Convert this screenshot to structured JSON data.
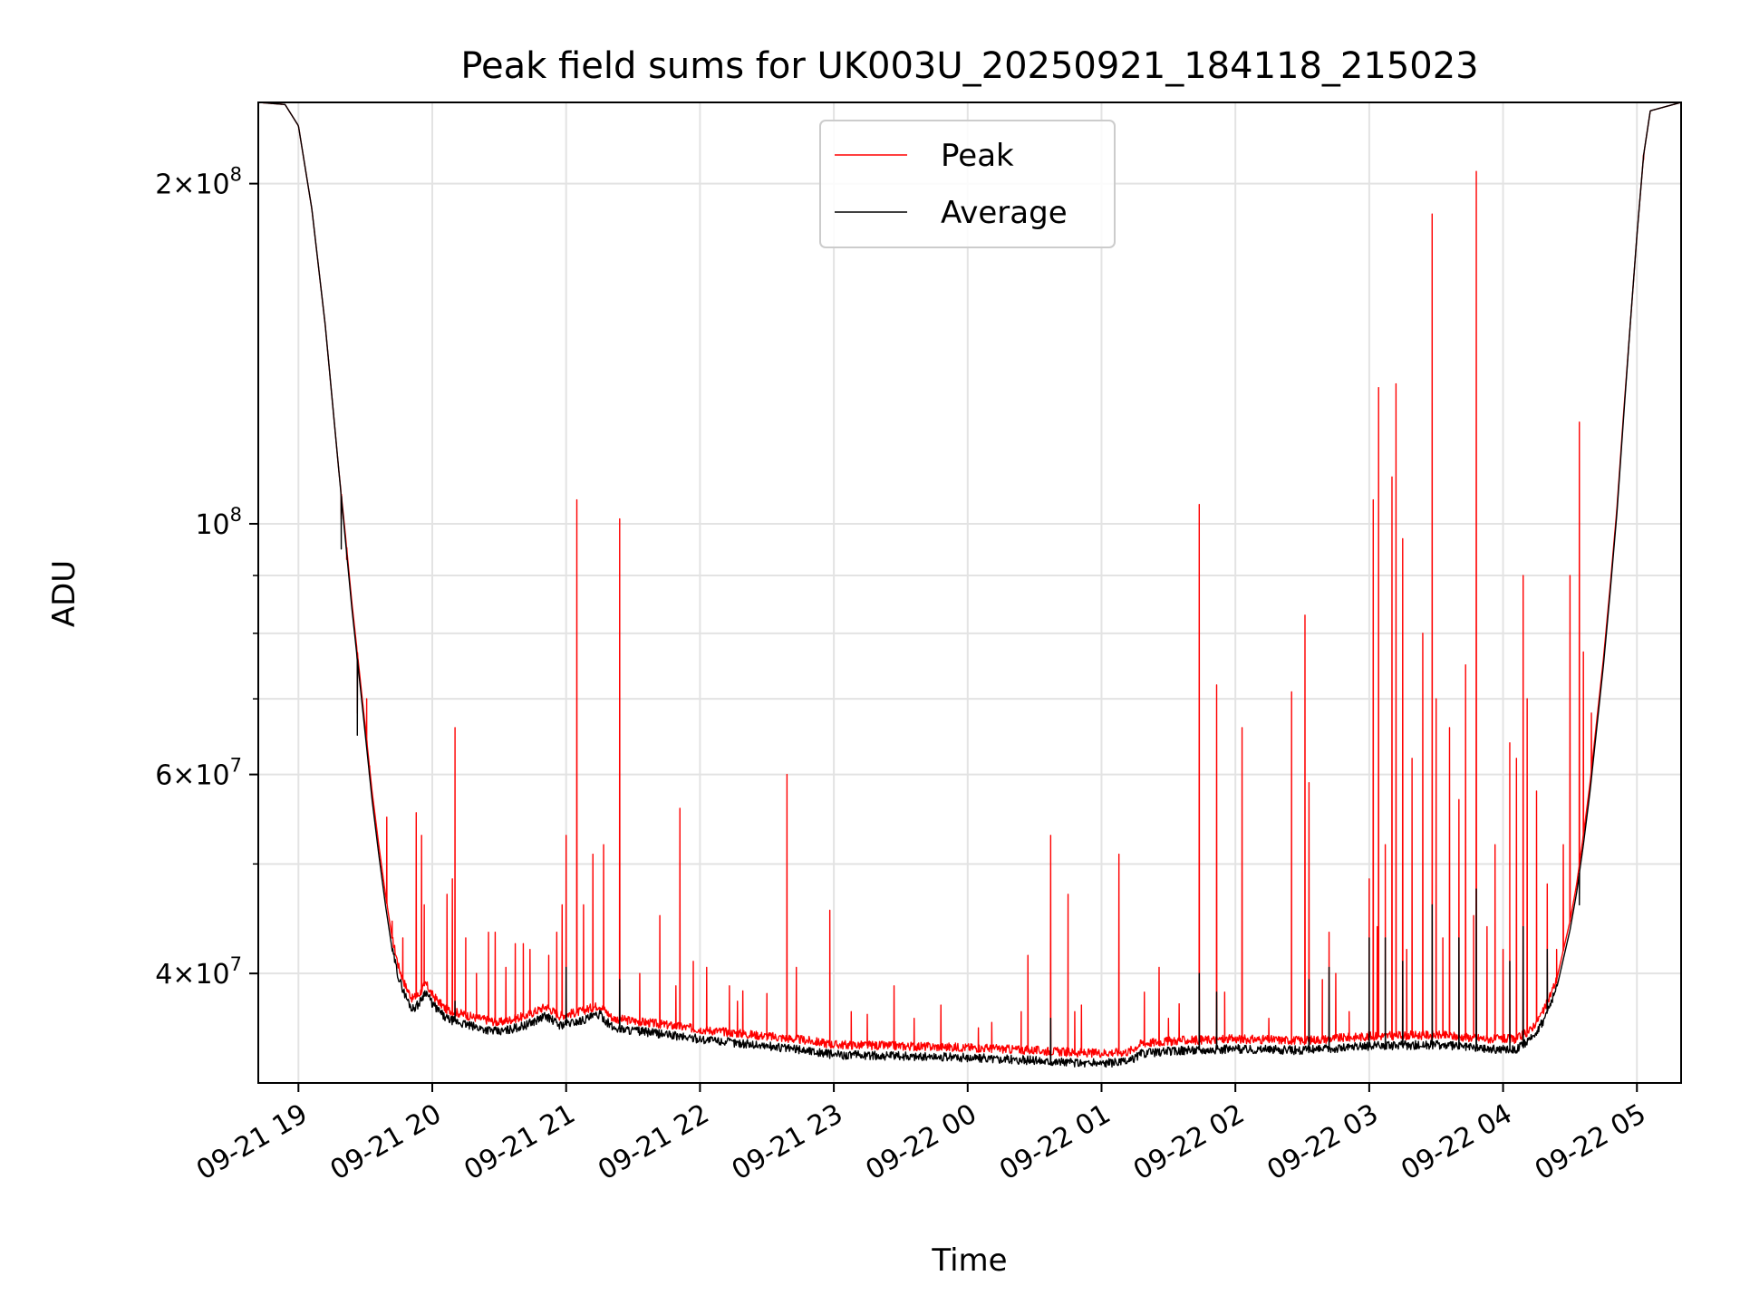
{
  "chart_data": {
    "type": "line",
    "title": "Peak field sums for UK003U_20250921_184118_215023",
    "xlabel": "Time",
    "ylabel": "ADU",
    "yscale": "log",
    "xlim": [
      -0.3,
      10.33
    ],
    "ylim": [
      32000000,
      236000000
    ],
    "grid": true,
    "legend_position": "upper-center",
    "x_ticks": [
      {
        "value": 0,
        "label": "09-21 19"
      },
      {
        "value": 1,
        "label": "09-21 20"
      },
      {
        "value": 2,
        "label": "09-21 21"
      },
      {
        "value": 3,
        "label": "09-21 22"
      },
      {
        "value": 4,
        "label": "09-21 23"
      },
      {
        "value": 5,
        "label": "09-22 00"
      },
      {
        "value": 6,
        "label": "09-22 01"
      },
      {
        "value": 7,
        "label": "09-22 02"
      },
      {
        "value": 8,
        "label": "09-22 03"
      },
      {
        "value": 9,
        "label": "09-22 04"
      },
      {
        "value": 10,
        "label": "09-22 05"
      }
    ],
    "y_ticks": [
      {
        "value": 40000000,
        "mantissa": "4",
        "exponent": "7",
        "label": "4×10^7"
      },
      {
        "value": 60000000,
        "mantissa": "6",
        "exponent": "7",
        "label": "6×10^7"
      },
      {
        "value": 100000000,
        "mantissa": "",
        "exponent": "8",
        "label": "10^8"
      },
      {
        "value": 200000000,
        "mantissa": "2",
        "exponent": "8",
        "label": "2×10^8"
      }
    ],
    "y_minor_ticks": [
      50000000,
      70000000,
      80000000,
      90000000
    ],
    "x_unit_note": "hours since 2025-09-21 19:00",
    "series": [
      {
        "name": "Peak",
        "color": "#ff0000",
        "baseline": [
          [
            -0.3,
            236000000
          ],
          [
            -0.1,
            235000000
          ],
          [
            0.0,
            225000000
          ],
          [
            0.1,
            190000000
          ],
          [
            0.2,
            150000000
          ],
          [
            0.3,
            112000000
          ],
          [
            0.35,
            98000000
          ],
          [
            0.4,
            85000000
          ],
          [
            0.45,
            75000000
          ],
          [
            0.5,
            66000000
          ],
          [
            0.55,
            58000000
          ],
          [
            0.6,
            52000000
          ],
          [
            0.65,
            47000000
          ],
          [
            0.7,
            43000000
          ],
          [
            0.75,
            40500000
          ],
          [
            0.8,
            39000000
          ],
          [
            0.85,
            38000000
          ],
          [
            0.9,
            38300000
          ],
          [
            0.95,
            39200000
          ],
          [
            1.0,
            38300000
          ],
          [
            1.1,
            37200000
          ],
          [
            1.3,
            36600000
          ],
          [
            1.5,
            36200000
          ],
          [
            1.7,
            36700000
          ],
          [
            1.85,
            37400000
          ],
          [
            1.95,
            36700000
          ],
          [
            2.1,
            37000000
          ],
          [
            2.25,
            37500000
          ],
          [
            2.35,
            36500000
          ],
          [
            2.6,
            36200000
          ],
          [
            3.0,
            35700000
          ],
          [
            3.5,
            35200000
          ],
          [
            3.8,
            34900000
          ],
          [
            4.0,
            34600000
          ],
          [
            4.5,
            34500000
          ],
          [
            5.0,
            34400000
          ],
          [
            5.5,
            34200000
          ],
          [
            5.9,
            34000000
          ],
          [
            6.2,
            34100000
          ],
          [
            6.3,
            34700000
          ],
          [
            6.6,
            34900000
          ],
          [
            7.0,
            35000000
          ],
          [
            7.5,
            34900000
          ],
          [
            8.0,
            35200000
          ],
          [
            8.5,
            35300000
          ],
          [
            8.9,
            35000000
          ],
          [
            9.1,
            35000000
          ],
          [
            9.2,
            35600000
          ],
          [
            9.3,
            37000000
          ],
          [
            9.4,
            39500000
          ],
          [
            9.5,
            44500000
          ],
          [
            9.55,
            48000000
          ],
          [
            9.6,
            53000000
          ],
          [
            9.65,
            59000000
          ],
          [
            9.7,
            67000000
          ],
          [
            9.75,
            76000000
          ],
          [
            9.8,
            88000000
          ],
          [
            9.85,
            103000000
          ],
          [
            9.9,
            125000000
          ],
          [
            9.95,
            150000000
          ],
          [
            10.0,
            180000000
          ],
          [
            10.05,
            212000000
          ],
          [
            10.1,
            232000000
          ],
          [
            10.33,
            236000000
          ]
        ],
        "spikes": [
          [
            0.32,
            101000000
          ],
          [
            0.36,
            93000000
          ],
          [
            0.44,
            68000000
          ],
          [
            0.51,
            70000000
          ],
          [
            0.53,
            60000000
          ],
          [
            0.66,
            55000000
          ],
          [
            0.88,
            55500000
          ],
          [
            0.92,
            53000000
          ],
          [
            0.94,
            46000000
          ],
          [
            1.11,
            47000000
          ],
          [
            1.15,
            48500000
          ],
          [
            1.17,
            66000000
          ],
          [
            1.25,
            43000000
          ],
          [
            1.42,
            43500000
          ],
          [
            1.47,
            43500000
          ],
          [
            1.62,
            42500000
          ],
          [
            1.68,
            42500000
          ],
          [
            1.73,
            42000000
          ],
          [
            1.87,
            41500000
          ],
          [
            1.93,
            43500000
          ],
          [
            1.97,
            46000000
          ],
          [
            2.0,
            53000000
          ],
          [
            2.08,
            105000000
          ],
          [
            2.13,
            46000000
          ],
          [
            2.2,
            51000000
          ],
          [
            2.28,
            52000000
          ],
          [
            2.4,
            101000000
          ],
          [
            2.55,
            40000000
          ],
          [
            2.7,
            45000000
          ],
          [
            2.85,
            56000000
          ],
          [
            2.95,
            41000000
          ],
          [
            3.05,
            40500000
          ],
          [
            3.22,
            39000000
          ],
          [
            3.32,
            38600000
          ],
          [
            3.5,
            38400000
          ],
          [
            3.65,
            60000000
          ],
          [
            3.72,
            40500000
          ],
          [
            3.97,
            45500000
          ],
          [
            4.13,
            37000000
          ],
          [
            4.25,
            36800000
          ],
          [
            4.45,
            39000000
          ],
          [
            4.8,
            37500000
          ],
          [
            5.18,
            36200000
          ],
          [
            5.4,
            37000000
          ],
          [
            5.45,
            41500000
          ],
          [
            5.62,
            53000000
          ],
          [
            5.75,
            47000000
          ],
          [
            5.8,
            37000000
          ],
          [
            5.85,
            37500000
          ],
          [
            6.13,
            51000000
          ],
          [
            6.32,
            38500000
          ],
          [
            6.43,
            40500000
          ],
          [
            6.5,
            36500000
          ],
          [
            6.73,
            104000000
          ],
          [
            6.86,
            72000000
          ],
          [
            7.05,
            66000000
          ],
          [
            7.25,
            36500000
          ],
          [
            7.42,
            71000000
          ],
          [
            7.52,
            83000000
          ],
          [
            7.55,
            59000000
          ],
          [
            7.65,
            39500000
          ],
          [
            7.7,
            43500000
          ],
          [
            7.75,
            40000000
          ],
          [
            7.85,
            37000000
          ],
          [
            8.0,
            48500000
          ],
          [
            8.03,
            105000000
          ],
          [
            8.07,
            132000000
          ],
          [
            8.12,
            52000000
          ],
          [
            8.17,
            110000000
          ],
          [
            8.2,
            133000000
          ],
          [
            8.25,
            97000000
          ],
          [
            8.32,
            62000000
          ],
          [
            8.4,
            80000000
          ],
          [
            8.47,
            188000000
          ],
          [
            8.5,
            70000000
          ],
          [
            8.6,
            66000000
          ],
          [
            8.67,
            57000000
          ],
          [
            8.72,
            75000000
          ],
          [
            8.78,
            45000000
          ],
          [
            8.8,
            205000000
          ],
          [
            8.88,
            44000000
          ],
          [
            8.94,
            52000000
          ],
          [
            9.0,
            42000000
          ],
          [
            9.05,
            64000000
          ],
          [
            9.1,
            62000000
          ],
          [
            9.15,
            90000000
          ],
          [
            9.18,
            70000000
          ],
          [
            9.25,
            58000000
          ],
          [
            9.33,
            48000000
          ],
          [
            9.45,
            52000000
          ],
          [
            9.5,
            90000000
          ],
          [
            9.57,
            123000000
          ],
          [
            9.6,
            77000000
          ],
          [
            9.66,
            68000000
          ],
          [
            10.05,
            210000000
          ],
          [
            9.05,
            45000000
          ],
          [
            8.06,
            44000000
          ],
          [
            8.28,
            42000000
          ],
          [
            8.55,
            43000000
          ],
          [
            9.4,
            42000000
          ],
          [
            6.92,
            38500000
          ],
          [
            6.58,
            37600000
          ],
          [
            5.08,
            35800000
          ],
          [
            4.6,
            36500000
          ],
          [
            3.28,
            37800000
          ],
          [
            2.82,
            39000000
          ],
          [
            1.55,
            40500000
          ],
          [
            1.33,
            40000000
          ],
          [
            0.78,
            43000000
          ],
          [
            0.7,
            44500000
          ]
        ]
      },
      {
        "name": "Average",
        "color": "#000000",
        "baseline": [
          [
            -0.3,
            236000000
          ],
          [
            -0.1,
            235000000
          ],
          [
            0.0,
            225000000
          ],
          [
            0.1,
            190000000
          ],
          [
            0.2,
            150000000
          ],
          [
            0.3,
            112000000
          ],
          [
            0.35,
            97000000
          ],
          [
            0.4,
            84000000
          ],
          [
            0.45,
            74000000
          ],
          [
            0.5,
            65000000
          ],
          [
            0.55,
            57000000
          ],
          [
            0.6,
            51000000
          ],
          [
            0.65,
            46000000
          ],
          [
            0.7,
            42000000
          ],
          [
            0.75,
            39600000
          ],
          [
            0.8,
            38200000
          ],
          [
            0.85,
            37200000
          ],
          [
            0.9,
            37600000
          ],
          [
            0.95,
            38600000
          ],
          [
            1.0,
            37600000
          ],
          [
            1.1,
            36500000
          ],
          [
            1.3,
            35900000
          ],
          [
            1.5,
            35500000
          ],
          [
            1.7,
            36000000
          ],
          [
            1.85,
            36700000
          ],
          [
            1.95,
            36000000
          ],
          [
            2.1,
            36300000
          ],
          [
            2.25,
            36800000
          ],
          [
            2.35,
            35800000
          ],
          [
            2.6,
            35500000
          ],
          [
            3.0,
            35000000
          ],
          [
            3.5,
            34500000
          ],
          [
            3.8,
            34200000
          ],
          [
            4.0,
            33900000
          ],
          [
            4.5,
            33800000
          ],
          [
            5.0,
            33700000
          ],
          [
            5.5,
            33500000
          ],
          [
            5.9,
            33300000
          ],
          [
            6.2,
            33400000
          ],
          [
            6.3,
            34000000
          ],
          [
            6.6,
            34200000
          ],
          [
            7.0,
            34300000
          ],
          [
            7.5,
            34200000
          ],
          [
            8.0,
            34500000
          ],
          [
            8.5,
            34600000
          ],
          [
            8.9,
            34300000
          ],
          [
            9.1,
            34300000
          ],
          [
            9.2,
            34900000
          ],
          [
            9.3,
            36300000
          ],
          [
            9.4,
            38800000
          ],
          [
            9.5,
            43700000
          ],
          [
            9.55,
            47200000
          ],
          [
            9.6,
            52000000
          ],
          [
            9.65,
            58000000
          ],
          [
            9.7,
            66000000
          ],
          [
            9.75,
            75000000
          ],
          [
            9.8,
            87000000
          ],
          [
            9.85,
            102000000
          ],
          [
            9.9,
            124000000
          ],
          [
            9.95,
            150000000
          ],
          [
            10.0,
            180000000
          ],
          [
            10.05,
            212000000
          ],
          [
            10.1,
            232000000
          ],
          [
            10.33,
            236000000
          ]
        ],
        "spikes": [
          [
            0.32,
            95000000
          ],
          [
            0.44,
            65000000
          ],
          [
            2.0,
            40500000
          ],
          [
            2.4,
            39500000
          ],
          [
            6.73,
            40000000
          ],
          [
            7.7,
            40500000
          ],
          [
            7.55,
            39500000
          ],
          [
            8.0,
            43000000
          ],
          [
            8.47,
            46000000
          ],
          [
            8.8,
            47500000
          ],
          [
            8.12,
            43000000
          ],
          [
            9.15,
            44000000
          ],
          [
            9.57,
            46000000
          ],
          [
            1.17,
            37800000
          ],
          [
            5.62,
            36500000
          ],
          [
            6.86,
            38500000
          ],
          [
            8.67,
            43000000
          ],
          [
            9.33,
            42000000
          ],
          [
            8.25,
            41000000
          ],
          [
            9.05,
            41000000
          ]
        ]
      }
    ]
  }
}
